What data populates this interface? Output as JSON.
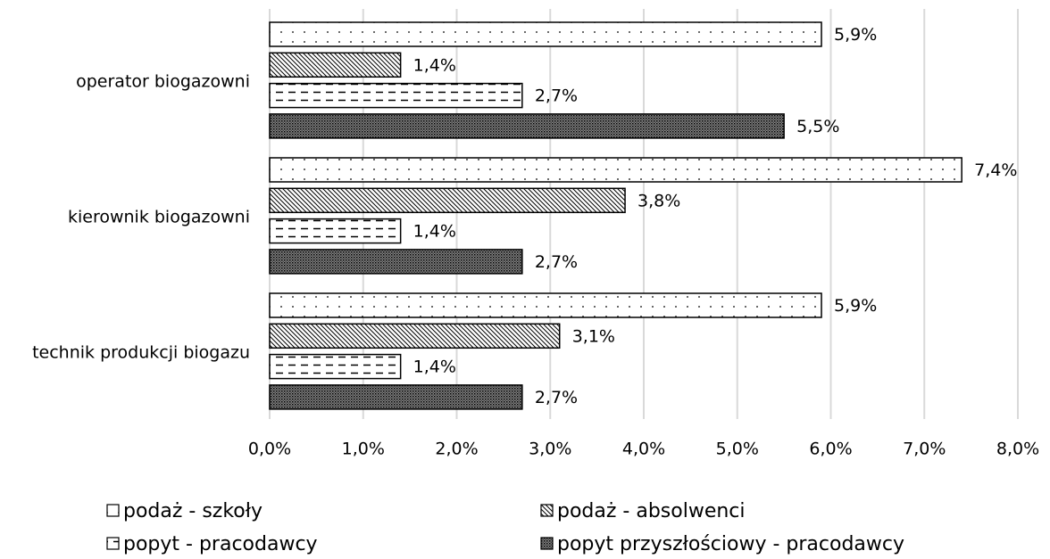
{
  "chart_data": {
    "type": "bar",
    "orientation": "horizontal",
    "categories": [
      "operator biogazowni",
      "kierownik biogazowni",
      "technik produkcji biogazu"
    ],
    "series": [
      {
        "name": "podaż - szkoły",
        "color": "#000000",
        "pattern": "dots",
        "values": [
          5.9,
          7.4,
          5.9
        ],
        "value_labels": [
          "5,9%",
          "7,4%",
          "5,9%"
        ]
      },
      {
        "name": "podaż - absolwenci",
        "color": "#000000",
        "pattern": "diagonal",
        "values": [
          1.4,
          3.8,
          3.1
        ],
        "value_labels": [
          "1,4%",
          "3,8%",
          "3,1%"
        ]
      },
      {
        "name": "popyt - pracodawcy",
        "color": "#000000",
        "pattern": "dashes",
        "values": [
          2.7,
          1.4,
          1.4
        ],
        "value_labels": [
          "2,7%",
          "1,4%",
          "1,4%"
        ]
      },
      {
        "name": "popyt przyszłościowy - pracodawcy",
        "color": "#000000",
        "pattern": "dense",
        "values": [
          5.5,
          2.7,
          2.7
        ],
        "value_labels": [
          "5,5%",
          "2,7%",
          "2,7%"
        ]
      }
    ],
    "xlim": [
      0,
      8
    ],
    "xticks": [
      {
        "value": 0,
        "label": "0,0%"
      },
      {
        "value": 1,
        "label": "1,0%"
      },
      {
        "value": 2,
        "label": "2,0%"
      },
      {
        "value": 3,
        "label": "3,0%"
      },
      {
        "value": 4,
        "label": "4,0%"
      },
      {
        "value": 5,
        "label": "5,0%"
      },
      {
        "value": 6,
        "label": "6,0%"
      },
      {
        "value": 7,
        "label": "7,0%"
      },
      {
        "value": 8,
        "label": "8,0%"
      }
    ],
    "grid": true,
    "legend": "bottom"
  }
}
